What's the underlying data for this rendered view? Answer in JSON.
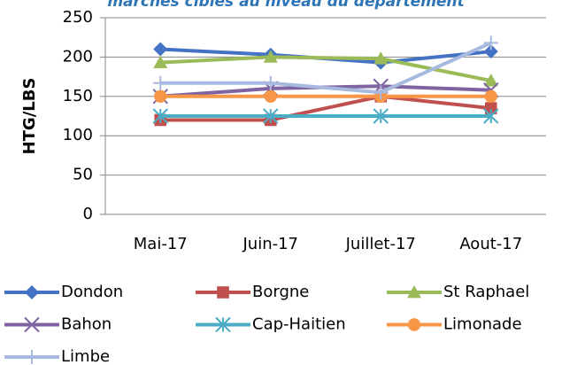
{
  "chart_data": {
    "type": "line",
    "title": "marchés cibles au niveau du département",
    "y_label": "HTG/LBS",
    "categories": [
      "Mai-17",
      "Juin-17",
      "Juillet-17",
      "Aout-17"
    ],
    "series": [
      {
        "name": "Dondon",
        "color": "#4472c4",
        "marker": "diamond",
        "values": [
          210,
          203,
          193,
          207
        ]
      },
      {
        "name": "Borgne",
        "color": "#c0504d",
        "marker": "square",
        "values": [
          120,
          120,
          150,
          135
        ]
      },
      {
        "name": "St Raphael",
        "color": "#9bbb59",
        "marker": "triangle",
        "values": [
          193,
          200,
          198,
          170
        ]
      },
      {
        "name": "Bahon",
        "color": "#8064a2",
        "marker": "x",
        "values": [
          150,
          160,
          163,
          158
        ]
      },
      {
        "name": "Cap-Haitien",
        "color": "#4bacc6",
        "marker": "star",
        "values": [
          125,
          125,
          125,
          125
        ]
      },
      {
        "name": "Limonade",
        "color": "#f79646",
        "marker": "circle",
        "values": [
          150,
          150,
          150,
          150
        ]
      },
      {
        "name": "Limbe",
        "color": "#a7b9de",
        "marker": "plus",
        "values": [
          167,
          167,
          155,
          218
        ]
      }
    ],
    "ylim": [
      0,
      250
    ],
    "yticks": [
      0,
      50,
      100,
      150,
      200,
      250
    ],
    "grid": true
  }
}
